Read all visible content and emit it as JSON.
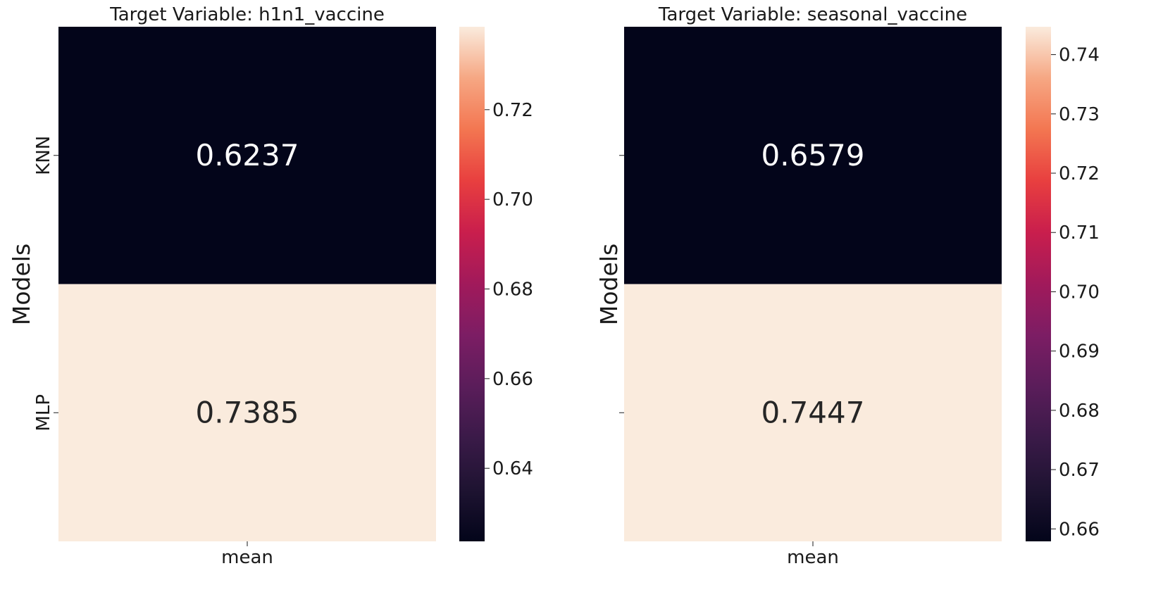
{
  "chart_data": [
    {
      "type": "heatmap",
      "title": "Target Variable: h1n1_vaccine",
      "ylabel": "Models",
      "xlabel": "",
      "x_categories": [
        "mean"
      ],
      "y_categories": [
        "KNN",
        "MLP"
      ],
      "values": [
        [
          0.6237
        ],
        [
          0.7385
        ]
      ],
      "value_labels": [
        "0.6237",
        "0.7385"
      ],
      "y_tick_labels_visible": true,
      "colorscale": "rocket",
      "colorbar": {
        "range": [
          0.6237,
          0.7385
        ],
        "ticks": [
          0.64,
          0.66,
          0.68,
          0.7,
          0.72
        ],
        "tick_labels": [
          "0.64",
          "0.66",
          "0.68",
          "0.70",
          "0.72"
        ]
      }
    },
    {
      "type": "heatmap",
      "title": "Target Variable: seasonal_vaccine",
      "ylabel": "Models",
      "xlabel": "",
      "x_categories": [
        "mean"
      ],
      "y_categories": [
        "KNN",
        "MLP"
      ],
      "values": [
        [
          0.6579
        ],
        [
          0.7447
        ]
      ],
      "value_labels": [
        "0.6579",
        "0.7447"
      ],
      "y_tick_labels_visible": false,
      "colorscale": "rocket",
      "colorbar": {
        "range": [
          0.6579,
          0.7447
        ],
        "ticks": [
          0.66,
          0.67,
          0.68,
          0.69,
          0.7,
          0.71,
          0.72,
          0.73,
          0.74
        ],
        "tick_labels": [
          "0.66",
          "0.67",
          "0.68",
          "0.69",
          "0.70",
          "0.71",
          "0.72",
          "0.73",
          "0.74"
        ]
      }
    }
  ]
}
